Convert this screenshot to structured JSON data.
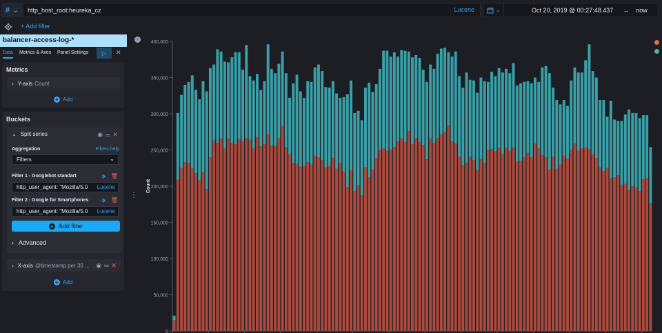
{
  "query": {
    "language_icon": "#",
    "value": "http_host_root:heureka_cz",
    "syntax": "Lucene"
  },
  "time": {
    "from": "Oct 20, 2019 @ 00:27:48.437",
    "arrow": "→",
    "to": "now"
  },
  "filters": {
    "add_label": "+ Add filter"
  },
  "sidebar": {
    "index_pattern": "balancer-access-log-*",
    "tabs": [
      "Data",
      "Metrics & Axes",
      "Panel Settings"
    ],
    "metrics": {
      "title": "Metrics",
      "y_axis_label": "Y-axis",
      "y_axis_agg": "Count",
      "add_label": "Add"
    },
    "buckets": {
      "title": "Buckets",
      "split_series_label": "Split series",
      "aggregation_label": "Aggregation",
      "filters_help": "Filters help",
      "aggregation_value": "Filters",
      "filter1_label": "Filter 1 - Googlebot standart",
      "filter1_value": "http_user_agent: \"Mozilla/5.0",
      "filter2_label": "Filter 2 - Google for Smartphones",
      "filter2_value": "http_user_agent: \"Mozilla/5.0",
      "lucene": "Lucene",
      "add_filter_label": "Add filter",
      "advanced_label": "Advanced",
      "x_axis_label": "X-axis",
      "x_axis_agg": "@timestamp per 30 ...",
      "add_label": "Add"
    }
  },
  "colors": {
    "series_red": "#ab4a3d",
    "series_teal": "#3aa0a8",
    "accent": "#36a2ef"
  },
  "chart_data": {
    "type": "bar",
    "stacked": true,
    "ylabel": "Count",
    "ylim": [
      0,
      400000
    ],
    "yticks": [
      "0",
      "50,000",
      "100,000",
      "150,000",
      "200,000",
      "250,000",
      "300,000",
      "350,000",
      "400,000"
    ],
    "grid": false,
    "legend_position": "right",
    "series": [
      {
        "values": [
          15000,
          209000,
          225000,
          233000,
          232000,
          225000,
          218000,
          208000,
          220000,
          196000,
          240000,
          263000,
          260000,
          266000,
          252000,
          266000,
          260000,
          258000,
          265000,
          262000,
          266000,
          264000,
          252000,
          268000,
          255000,
          258000,
          272000,
          256000,
          255000,
          266000,
          283000,
          254000,
          244000,
          232000,
          231000,
          227000,
          228000,
          233000,
          230000,
          242000,
          240000,
          236000,
          226000,
          228000,
          239000,
          224000,
          232000,
          220000,
          199000,
          222000,
          193000,
          201000,
          187000,
          226000,
          212000,
          223000,
          239000,
          250000,
          252000,
          249000,
          251000,
          254000,
          262000,
          266000,
          261000,
          276000,
          258000,
          266000,
          261000,
          257000,
          237000,
          266000,
          260000,
          266000,
          272000,
          275000,
          284000,
          262000,
          259000,
          241000,
          229000,
          232000,
          241000,
          236000,
          222000,
          238000,
          232000,
          250000,
          251000,
          248000,
          253000,
          244000,
          253000,
          249000,
          253000,
          234000,
          235000,
          240000,
          246000,
          240000,
          259000,
          252000,
          243000,
          240000,
          223000,
          241000,
          224000,
          230000,
          242000,
          238000,
          250000,
          259000,
          249000,
          252000,
          253000,
          251000,
          244000,
          239000,
          226000,
          221000,
          225000,
          211000,
          212000,
          215000,
          202000,
          203000,
          195000,
          200000,
          198000,
          193000,
          210000,
          211000,
          176000
        ]
      },
      {
        "values": [
          6000,
          92000,
          101000,
          107000,
          112000,
          128000,
          115000,
          112000,
          125000,
          135000,
          123000,
          105000,
          129000,
          120000,
          120000,
          105000,
          118000,
          127000,
          120000,
          99000,
          129000,
          88000,
          94000,
          87000,
          78000,
          87000,
          124000,
          106000,
          101000,
          103000,
          103000,
          102000,
          78000,
          110000,
          123000,
          104000,
          94000,
          112000,
          114000,
          122000,
          128000,
          123000,
          111000,
          108000,
          106000,
          104000,
          90000,
          103000,
          128000,
          124000,
          108000,
          103000,
          104000,
          110000,
          131000,
          107000,
          102000,
          112000,
          135000,
          138000,
          128000,
          131000,
          117000,
          122000,
          126000,
          110000,
          120000,
          115000,
          116000,
          104000,
          107000,
          102000,
          102000,
          117000,
          118000,
          116000,
          101000,
          117000,
          127000,
          111000,
          107000,
          125000,
          106000,
          110000,
          107000,
          112000,
          113000,
          94000,
          107000,
          104000,
          110000,
          113000,
          109000,
          107000,
          117000,
          105000,
          107000,
          104000,
          99000,
          102000,
          91000,
          92000,
          121000,
          126000,
          133000,
          95000,
          95000,
          83000,
          77000,
          73000,
          96000,
          105000,
          108000,
          105000,
          121000,
          145000,
          115000,
          111000,
          93000,
          98000,
          71000,
          107000,
          80000,
          75000,
          88000,
          96000,
          111000,
          101000,
          103000,
          101000,
          88000,
          87000,
          78000
        ]
      }
    ]
  }
}
